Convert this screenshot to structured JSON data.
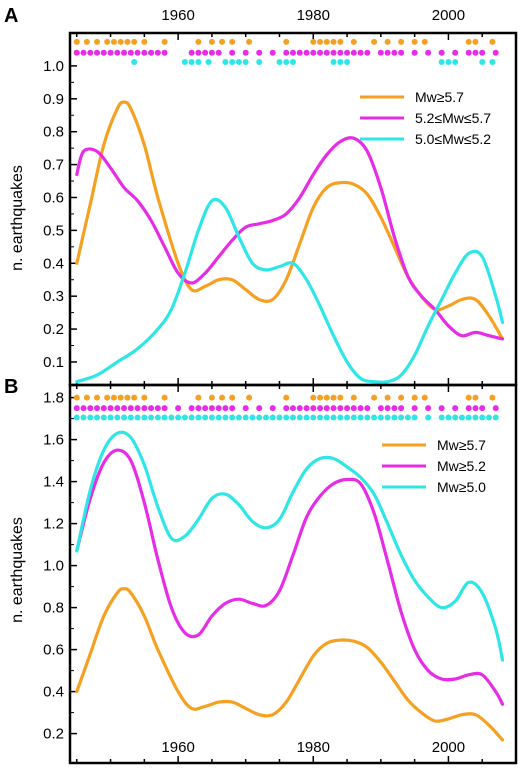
{
  "chart_data": [
    {
      "type": "line",
      "panel": "A",
      "xlabel": "",
      "ylabel": "n. earthquakes",
      "xlim": [
        1944,
        2010
      ],
      "ylim": [
        0.03,
        1.1
      ],
      "xticks": [
        1960,
        1980,
        2000
      ],
      "yticks": [
        0.1,
        0.2,
        0.3,
        0.4,
        0.5,
        0.6,
        0.7,
        0.8,
        0.9,
        1.0
      ],
      "legend": "top-right",
      "grid": false,
      "series": [
        {
          "name": "Mw≥5.7",
          "color": "#f5a020",
          "x": [
            1945,
            1947,
            1949,
            1951,
            1952,
            1953,
            1955,
            1957,
            1960,
            1962,
            1964,
            1966,
            1968,
            1970,
            1972,
            1974,
            1976,
            1978,
            1980,
            1982,
            1984,
            1986,
            1988,
            1990,
            1992,
            1994,
            1996,
            1998,
            2000,
            2002,
            2004,
            2006,
            2008
          ],
          "y": [
            0.4,
            0.58,
            0.76,
            0.87,
            0.89,
            0.87,
            0.76,
            0.6,
            0.4,
            0.32,
            0.33,
            0.35,
            0.35,
            0.32,
            0.29,
            0.29,
            0.35,
            0.46,
            0.57,
            0.63,
            0.645,
            0.64,
            0.61,
            0.54,
            0.45,
            0.36,
            0.3,
            0.26,
            0.27,
            0.29,
            0.29,
            0.24,
            0.17
          ]
        },
        {
          "name": "5.2≤Mw≤5.7",
          "color": "#e62ce6",
          "x": [
            1945,
            1946,
            1948,
            1950,
            1952,
            1954,
            1956,
            1958,
            1960,
            1962,
            1964,
            1966,
            1968,
            1970,
            1972,
            1974,
            1976,
            1978,
            1980,
            1982,
            1984,
            1986,
            1988,
            1990,
            1992,
            1994,
            1996,
            1998,
            2000,
            2002,
            2004,
            2006,
            2008
          ],
          "y": [
            0.67,
            0.74,
            0.74,
            0.69,
            0.63,
            0.59,
            0.53,
            0.45,
            0.37,
            0.34,
            0.37,
            0.42,
            0.47,
            0.51,
            0.52,
            0.53,
            0.55,
            0.6,
            0.67,
            0.73,
            0.77,
            0.78,
            0.74,
            0.63,
            0.48,
            0.36,
            0.3,
            0.26,
            0.21,
            0.18,
            0.19,
            0.18,
            0.17
          ]
        },
        {
          "name": "5.0≤Mw≤5.2",
          "color": "#2ee6e6",
          "x": [
            1945,
            1948,
            1951,
            1954,
            1957,
            1959,
            1961,
            1963,
            1965,
            1967,
            1969,
            1971,
            1973,
            1975,
            1977,
            1979,
            1981,
            1983,
            1985,
            1987,
            1989,
            1991,
            1993,
            1995,
            1997,
            1999,
            2001,
            2003,
            2005,
            2007,
            2008
          ],
          "y": [
            0.04,
            0.06,
            0.1,
            0.14,
            0.2,
            0.26,
            0.37,
            0.5,
            0.59,
            0.57,
            0.48,
            0.4,
            0.38,
            0.39,
            0.4,
            0.35,
            0.27,
            0.18,
            0.1,
            0.05,
            0.04,
            0.04,
            0.06,
            0.12,
            0.21,
            0.29,
            0.37,
            0.43,
            0.42,
            0.3,
            0.22
          ]
        }
      ],
      "event_rows": [
        {
          "color": "#f5a020",
          "y": 1.073,
          "x": [
            1945,
            1946.5,
            1948,
            1949.5,
            1950.5,
            1951.5,
            1952.5,
            1953.5,
            1955,
            1958,
            1963,
            1965,
            1966.5,
            1968,
            1970.5,
            1976,
            1980,
            1981,
            1982,
            1983,
            1984,
            1986,
            1989,
            1991,
            1993,
            1995,
            1996.5,
            2003,
            2004,
            2006.5
          ]
        },
        {
          "color": "#e62ce6",
          "y": 1.04,
          "x": [
            1945,
            1946,
            1947,
            1948,
            1949,
            1950,
            1951,
            1952,
            1953,
            1954,
            1955,
            1956,
            1957,
            1958,
            1962,
            1963,
            1964,
            1965,
            1966,
            1968,
            1970,
            1972,
            1974,
            1976,
            1977,
            1978,
            1979,
            1980,
            1981,
            1982,
            1983,
            1984,
            1985,
            1986,
            1987,
            1988,
            1990,
            1991,
            1992,
            1993,
            1995,
            1997,
            1999,
            2001,
            2003,
            2004,
            2005,
            2007
          ]
        },
        {
          "color": "#2ee6e6",
          "y": 1.012,
          "x": [
            1953.5,
            1961,
            1962,
            1963,
            1964.5,
            1967,
            1968,
            1969,
            1970,
            1972,
            1975,
            1976,
            1977,
            1983,
            1984,
            1985,
            1999,
            2000,
            2001,
            2005,
            2006.5
          ]
        }
      ]
    },
    {
      "type": "line",
      "panel": "B",
      "xlabel": "",
      "ylabel": "n. earthquakes",
      "xlim": [
        1944,
        2010
      ],
      "ylim": [
        0.06,
        1.86
      ],
      "xticks": [
        1960,
        1980,
        2000
      ],
      "yticks": [
        0.2,
        0.4,
        0.6,
        0.8,
        1.0,
        1.2,
        1.4,
        1.6,
        1.8
      ],
      "legend": "top-right",
      "grid": false,
      "series": [
        {
          "name": "Mw≥5.7",
          "color": "#f5a020",
          "x": [
            1945,
            1947,
            1949,
            1951,
            1952,
            1953,
            1955,
            1957,
            1960,
            1962,
            1964,
            1966,
            1968,
            1970,
            1972,
            1974,
            1976,
            1978,
            1980,
            1982,
            1984,
            1986,
            1988,
            1990,
            1992,
            1994,
            1996,
            1998,
            2000,
            2002,
            2004,
            2006,
            2008
          ],
          "y": [
            0.4,
            0.58,
            0.76,
            0.87,
            0.89,
            0.87,
            0.76,
            0.6,
            0.4,
            0.32,
            0.33,
            0.35,
            0.35,
            0.32,
            0.29,
            0.29,
            0.35,
            0.46,
            0.57,
            0.63,
            0.645,
            0.64,
            0.61,
            0.54,
            0.45,
            0.36,
            0.3,
            0.26,
            0.27,
            0.29,
            0.29,
            0.24,
            0.17
          ]
        },
        {
          "name": "Mw≥5.2",
          "color": "#e62ce6",
          "x": [
            1945,
            1947,
            1949,
            1951,
            1953,
            1955,
            1957,
            1959,
            1961,
            1963,
            1965,
            1967,
            1969,
            1971,
            1973,
            1975,
            1977,
            1979,
            1981,
            1983,
            1985,
            1987,
            1989,
            1991,
            1993,
            1995,
            1997,
            1999,
            2001,
            2003,
            2005,
            2007,
            2008
          ],
          "y": [
            1.07,
            1.32,
            1.49,
            1.55,
            1.5,
            1.3,
            1.03,
            0.8,
            0.68,
            0.67,
            0.76,
            0.82,
            0.84,
            0.82,
            0.81,
            0.88,
            1.05,
            1.23,
            1.33,
            1.39,
            1.41,
            1.39,
            1.25,
            1.02,
            0.78,
            0.6,
            0.5,
            0.46,
            0.46,
            0.48,
            0.48,
            0.4,
            0.34
          ]
        },
        {
          "name": "Mw≥5.0",
          "color": "#2ee6e6",
          "x": [
            1945,
            1947,
            1949,
            1951,
            1953,
            1955,
            1957,
            1959,
            1961,
            1963,
            1965,
            1967,
            1969,
            1971,
            1973,
            1975,
            1977,
            1979,
            1981,
            1983,
            1985,
            1987,
            1989,
            1991,
            1993,
            1995,
            1997,
            1999,
            2001,
            2003,
            2005,
            2007,
            2008
          ],
          "y": [
            1.07,
            1.36,
            1.55,
            1.63,
            1.61,
            1.48,
            1.28,
            1.13,
            1.14,
            1.22,
            1.32,
            1.34,
            1.29,
            1.21,
            1.18,
            1.22,
            1.35,
            1.46,
            1.51,
            1.51,
            1.47,
            1.42,
            1.34,
            1.2,
            1.05,
            0.93,
            0.85,
            0.8,
            0.83,
            0.92,
            0.87,
            0.7,
            0.55
          ]
        }
      ],
      "event_rows": [
        {
          "color": "#f5a020",
          "y": 1.8,
          "x": [
            1945,
            1946.5,
            1948,
            1949.5,
            1950.5,
            1951.5,
            1952.5,
            1953.5,
            1955,
            1958,
            1963,
            1965,
            1966.5,
            1968,
            1970.5,
            1976,
            1980,
            1981,
            1982,
            1983,
            1984,
            1986,
            1989,
            1991,
            1993,
            1995,
            1996.5,
            2003,
            2004,
            2006.5
          ]
        },
        {
          "color": "#e62ce6",
          "y": 1.75,
          "x": [
            1945,
            1946,
            1947,
            1948,
            1949,
            1950,
            1951,
            1952,
            1953,
            1954,
            1955,
            1956,
            1957,
            1958,
            1960,
            1962,
            1963,
            1964,
            1965,
            1966,
            1967,
            1968,
            1970,
            1972,
            1974,
            1976,
            1977,
            1978,
            1979,
            1980,
            1981,
            1982,
            1983,
            1984,
            1985,
            1986,
            1987,
            1988,
            1990,
            1991,
            1992,
            1993,
            1995,
            1997,
            1999,
            2001,
            2003,
            2004,
            2005,
            2007
          ]
        },
        {
          "color": "#2ee6e6",
          "y": 1.705,
          "x": [
            1945,
            1946,
            1947,
            1948,
            1949,
            1950,
            1951,
            1952,
            1953,
            1954,
            1955,
            1956,
            1957,
            1958,
            1959,
            1960,
            1961,
            1962,
            1963,
            1964,
            1965,
            1966,
            1967,
            1968,
            1969,
            1970,
            1971,
            1972,
            1973,
            1974,
            1975,
            1976,
            1977,
            1978,
            1979,
            1980,
            1981,
            1982,
            1983,
            1984,
            1985,
            1986,
            1987,
            1988,
            1989,
            1990,
            1991,
            1992,
            1993,
            1994,
            1995,
            1997,
            1999,
            2000,
            2001,
            2002,
            2003,
            2004,
            2005,
            2006,
            2007
          ]
        }
      ]
    }
  ]
}
